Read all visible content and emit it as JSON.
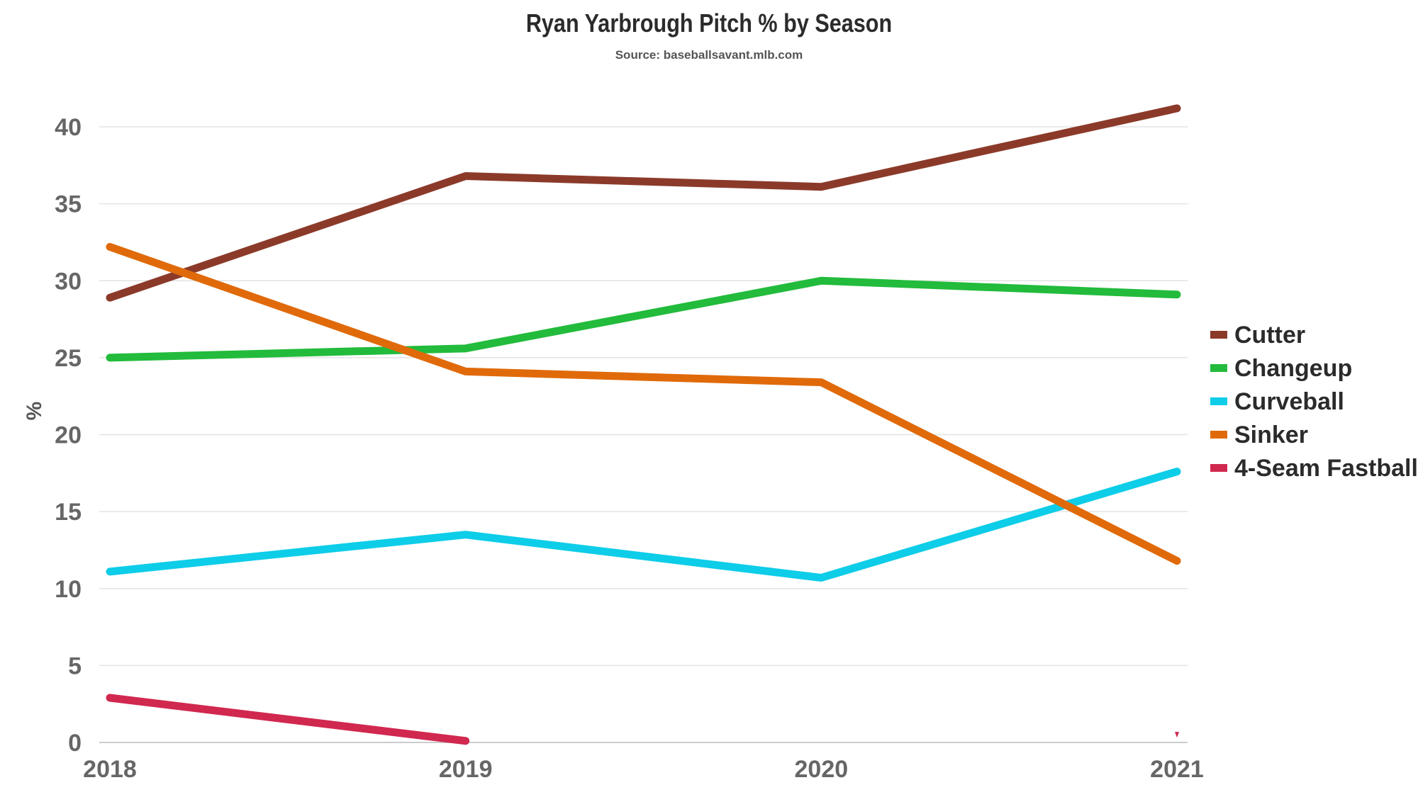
{
  "chart_data": {
    "type": "line",
    "title": "Ryan Yarbrough Pitch % by Season",
    "subtitle": "Source: baseballsavant.mlb.com",
    "xlabel": "",
    "ylabel": "%",
    "x": [
      "2018",
      "2019",
      "2020",
      "2021"
    ],
    "ylim": [
      0,
      42
    ],
    "yticks": [
      0,
      5,
      10,
      15,
      20,
      25,
      30,
      35,
      40
    ],
    "grid": true,
    "legend_position": "right",
    "series": [
      {
        "name": "Cutter",
        "color": "#8b3a2a",
        "values": [
          28.9,
          36.8,
          36.1,
          41.2
        ]
      },
      {
        "name": "Changeup",
        "color": "#22bb3c",
        "values": [
          25.0,
          25.6,
          30.0,
          29.1
        ]
      },
      {
        "name": "Curveball",
        "color": "#0dcde8",
        "values": [
          11.1,
          13.5,
          10.7,
          17.6
        ]
      },
      {
        "name": "Sinker",
        "color": "#e06a0a",
        "values": [
          32.2,
          24.1,
          23.4,
          11.8
        ]
      },
      {
        "name": "4-Seam Fastball",
        "color": "#d1284f",
        "values": [
          2.9,
          0.1,
          null,
          0.5
        ]
      }
    ]
  }
}
